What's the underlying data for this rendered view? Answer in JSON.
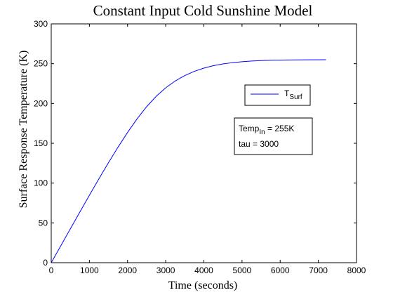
{
  "chart_data": {
    "type": "line",
    "title": "Constant Input Cold Sunshine Model",
    "xlabel": "Time (seconds)",
    "ylabel": "Surface Response Temperature (K)",
    "xlim": [
      0,
      8000
    ],
    "ylim": [
      0,
      300
    ],
    "xticks": [
      0,
      1000,
      2000,
      3000,
      4000,
      5000,
      6000,
      7000,
      8000
    ],
    "yticks": [
      0,
      50,
      100,
      150,
      200,
      250,
      300
    ],
    "grid": false,
    "legend": {
      "position": "right",
      "entries": [
        {
          "base": "T",
          "sub": "Surf",
          "color": "#0000ff"
        }
      ]
    },
    "annotation": {
      "line1_base": "Temp",
      "line1_sub": "In",
      "line1_rest": " = 255K",
      "line2": "tau = 3000"
    },
    "series": [
      {
        "color": "#0000ff",
        "x": [
          0,
          250,
          500,
          750,
          1000,
          1250,
          1500,
          1750,
          2000,
          2250,
          2500,
          2750,
          3000,
          3250,
          3500,
          3750,
          4000,
          4250,
          4500,
          4750,
          5000,
          5250,
          5500,
          5750,
          6000,
          6250,
          6500,
          6750,
          7000,
          7200
        ],
        "y": [
          0,
          21.2,
          42.5,
          63.6,
          84.7,
          105.4,
          125.6,
          145.1,
          163.6,
          180.7,
          196.0,
          209.0,
          219.7,
          228.3,
          235.1,
          240.4,
          244.4,
          247.5,
          249.7,
          251.3,
          252.5,
          253.3,
          253.9,
          254.3,
          254.5,
          254.7,
          254.8,
          254.9,
          254.9,
          255.0
        ]
      }
    ]
  }
}
